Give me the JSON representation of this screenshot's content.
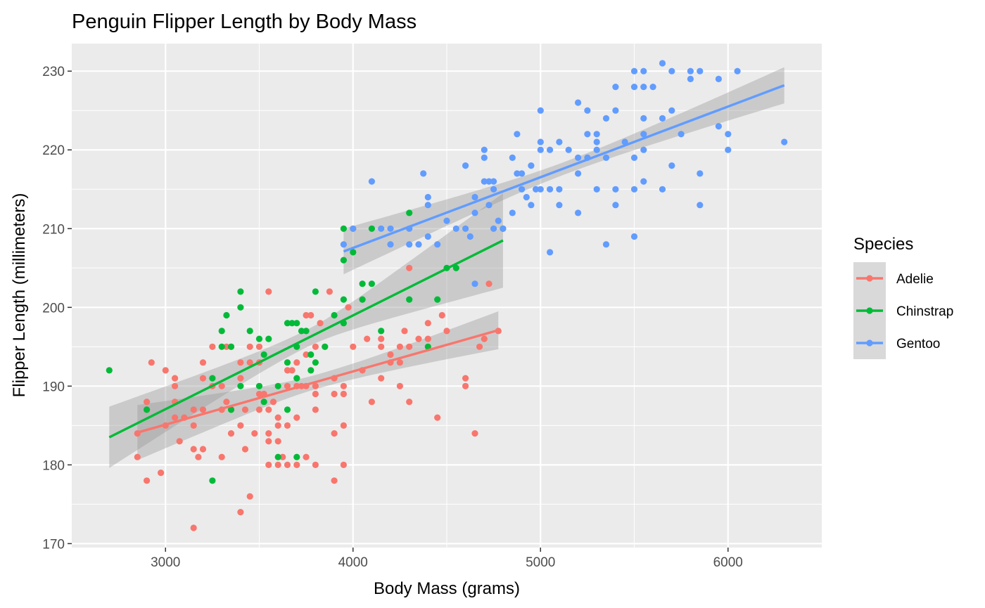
{
  "chart_data": {
    "type": "scatter",
    "title": "Penguin Flipper Length by Body Mass",
    "xlabel": "Body Mass (grams)",
    "ylabel": "Flipper Length (millimeters)",
    "xlim": [
      2500,
      6500
    ],
    "ylim": [
      169.5,
      233.5
    ],
    "x_ticks": [
      3000,
      4000,
      5000,
      6000
    ],
    "y_ticks": [
      170,
      180,
      190,
      200,
      210,
      220,
      230
    ],
    "x_tick_labels": [
      "3000",
      "4000",
      "5000",
      "6000"
    ],
    "y_tick_labels": [
      "170",
      "180",
      "190",
      "200",
      "210",
      "220",
      "230"
    ],
    "grid": true,
    "panel_background": "#ebebeb",
    "legend": {
      "title": "Species",
      "position": "right"
    },
    "series": [
      {
        "name": "Adelie",
        "color": "#f8766d",
        "trend": {
          "x": [
            2850,
            4775
          ],
          "y": [
            184.1,
            197.1
          ],
          "ci_half_width_ends": [
            3.5,
            2.4
          ],
          "ci_half_width_mid": 0.9
        },
        "points": [
          [
            2850,
            184
          ],
          [
            2850,
            181
          ],
          [
            2900,
            188
          ],
          [
            2900,
            187
          ],
          [
            2900,
            178
          ],
          [
            2925,
            193
          ],
          [
            2975,
            179
          ],
          [
            3000,
            192
          ],
          [
            3000,
            185
          ],
          [
            3050,
            191
          ],
          [
            3050,
            190
          ],
          [
            3050,
            188
          ],
          [
            3050,
            186
          ],
          [
            3075,
            183
          ],
          [
            3100,
            186
          ],
          [
            3150,
            187
          ],
          [
            3150,
            185
          ],
          [
            3150,
            182
          ],
          [
            3150,
            172
          ],
          [
            3175,
            181
          ],
          [
            3200,
            193
          ],
          [
            3200,
            191
          ],
          [
            3200,
            182
          ],
          [
            3200,
            187
          ],
          [
            3250,
            195
          ],
          [
            3250,
            190
          ],
          [
            3300,
            190
          ],
          [
            3300,
            187
          ],
          [
            3300,
            181
          ],
          [
            3325,
            188
          ],
          [
            3325,
            195
          ],
          [
            3350,
            187
          ],
          [
            3350,
            184
          ],
          [
            3350,
            195
          ],
          [
            3400,
            191
          ],
          [
            3400,
            185
          ],
          [
            3400,
            193
          ],
          [
            3400,
            174
          ],
          [
            3425,
            182
          ],
          [
            3425,
            187
          ],
          [
            3450,
            193
          ],
          [
            3450,
            195
          ],
          [
            3450,
            176
          ],
          [
            3475,
            184
          ],
          [
            3500,
            193
          ],
          [
            3500,
            189
          ],
          [
            3500,
            187
          ],
          [
            3500,
            195
          ],
          [
            3525,
            189
          ],
          [
            3550,
            202
          ],
          [
            3550,
            187
          ],
          [
            3550,
            184
          ],
          [
            3550,
            180
          ],
          [
            3550,
            183
          ],
          [
            3575,
            188
          ],
          [
            3600,
            186
          ],
          [
            3600,
            185
          ],
          [
            3600,
            180
          ],
          [
            3600,
            183
          ],
          [
            3625,
            181
          ],
          [
            3650,
            192
          ],
          [
            3650,
            190
          ],
          [
            3650,
            185
          ],
          [
            3650,
            180
          ],
          [
            3675,
            192
          ],
          [
            3700,
            193
          ],
          [
            3700,
            190
          ],
          [
            3700,
            186
          ],
          [
            3700,
            180
          ],
          [
            3725,
            190
          ],
          [
            3750,
            199
          ],
          [
            3750,
            194
          ],
          [
            3750,
            190
          ],
          [
            3750,
            181
          ],
          [
            3775,
            199
          ],
          [
            3800,
            195
          ],
          [
            3800,
            190
          ],
          [
            3800,
            189
          ],
          [
            3800,
            187
          ],
          [
            3800,
            180
          ],
          [
            3825,
            198
          ],
          [
            3850,
            195
          ],
          [
            3875,
            202
          ],
          [
            3900,
            191
          ],
          [
            3900,
            189
          ],
          [
            3900,
            184
          ],
          [
            3900,
            178
          ],
          [
            3950,
            190
          ],
          [
            3950,
            189
          ],
          [
            3950,
            185
          ],
          [
            3950,
            180
          ],
          [
            3975,
            200
          ],
          [
            4000,
            195
          ],
          [
            4000,
            210
          ],
          [
            4050,
            192
          ],
          [
            4075,
            196
          ],
          [
            4100,
            188
          ],
          [
            4150,
            196
          ],
          [
            4150,
            195
          ],
          [
            4150,
            191
          ],
          [
            4200,
            194
          ],
          [
            4200,
            193
          ],
          [
            4250,
            195
          ],
          [
            4250,
            193
          ],
          [
            4250,
            190
          ],
          [
            4275,
            197
          ],
          [
            4300,
            195
          ],
          [
            4300,
            188
          ],
          [
            4300,
            205
          ],
          [
            4350,
            196
          ],
          [
            4400,
            198
          ],
          [
            4400,
            196
          ],
          [
            4450,
            186
          ],
          [
            4475,
            199
          ],
          [
            4500,
            197
          ],
          [
            4600,
            191
          ],
          [
            4600,
            190
          ],
          [
            4650,
            184
          ],
          [
            4675,
            195
          ],
          [
            4700,
            196
          ],
          [
            4725,
            203
          ],
          [
            4775,
            197
          ]
        ]
      },
      {
        "name": "Chinstrap",
        "color": "#00ba38",
        "trend": {
          "x": [
            2700,
            4800
          ],
          "y": [
            183.5,
            208.5
          ],
          "ci_half_width_ends": [
            3.9,
            6.0
          ],
          "ci_half_width_mid": 1.1
        },
        "points": [
          [
            2700,
            192
          ],
          [
            2900,
            187
          ],
          [
            3250,
            178
          ],
          [
            3250,
            191
          ],
          [
            3300,
            197
          ],
          [
            3300,
            195
          ],
          [
            3325,
            199
          ],
          [
            3350,
            187
          ],
          [
            3350,
            195
          ],
          [
            3400,
            202
          ],
          [
            3400,
            200
          ],
          [
            3400,
            190
          ],
          [
            3450,
            197
          ],
          [
            3500,
            196
          ],
          [
            3500,
            190
          ],
          [
            3525,
            194
          ],
          [
            3525,
            188
          ],
          [
            3550,
            196
          ],
          [
            3600,
            190
          ],
          [
            3600,
            181
          ],
          [
            3650,
            198
          ],
          [
            3650,
            193
          ],
          [
            3650,
            187
          ],
          [
            3675,
            198
          ],
          [
            3700,
            198
          ],
          [
            3700,
            195
          ],
          [
            3700,
            191
          ],
          [
            3700,
            181
          ],
          [
            3725,
            197
          ],
          [
            3750,
            197
          ],
          [
            3775,
            192
          ],
          [
            3775,
            194
          ],
          [
            3800,
            202
          ],
          [
            3800,
            193
          ],
          [
            3850,
            195
          ],
          [
            3900,
            199
          ],
          [
            3950,
            210
          ],
          [
            3950,
            206
          ],
          [
            3950,
            201
          ],
          [
            3950,
            198
          ],
          [
            4000,
            207
          ],
          [
            4050,
            203
          ],
          [
            4050,
            201
          ],
          [
            4100,
            210
          ],
          [
            4100,
            203
          ],
          [
            4150,
            197
          ],
          [
            4300,
            212
          ],
          [
            4300,
            201
          ],
          [
            4400,
            195
          ],
          [
            4450,
            201
          ],
          [
            4500,
            205
          ],
          [
            4550,
            205
          ],
          [
            4800,
            210
          ]
        ]
      },
      {
        "name": "Gentoo",
        "color": "#619cff",
        "trend": {
          "x": [
            3950,
            6300
          ],
          "y": [
            207.1,
            228.2
          ],
          "ci_half_width_ends": [
            2.9,
            2.3
          ],
          "ci_half_width_mid": 0.8
        },
        "points": [
          [
            3950,
            208
          ],
          [
            4000,
            210
          ],
          [
            4100,
            216
          ],
          [
            4150,
            210
          ],
          [
            4200,
            210
          ],
          [
            4200,
            208
          ],
          [
            4300,
            210
          ],
          [
            4300,
            208
          ],
          [
            4350,
            208
          ],
          [
            4375,
            217
          ],
          [
            4400,
            214
          ],
          [
            4400,
            213
          ],
          [
            4400,
            209
          ],
          [
            4450,
            208
          ],
          [
            4500,
            211
          ],
          [
            4550,
            210
          ],
          [
            4600,
            218
          ],
          [
            4600,
            210
          ],
          [
            4625,
            209
          ],
          [
            4650,
            203
          ],
          [
            4650,
            214
          ],
          [
            4650,
            212
          ],
          [
            4700,
            220
          ],
          [
            4700,
            219
          ],
          [
            4700,
            216
          ],
          [
            4725,
            216
          ],
          [
            4725,
            213
          ],
          [
            4750,
            216
          ],
          [
            4750,
            215
          ],
          [
            4750,
            210
          ],
          [
            4775,
            211
          ],
          [
            4800,
            210
          ],
          [
            4850,
            219
          ],
          [
            4850,
            212
          ],
          [
            4875,
            222
          ],
          [
            4875,
            217
          ],
          [
            4900,
            217
          ],
          [
            4900,
            215
          ],
          [
            4925,
            214
          ],
          [
            4950,
            218
          ],
          [
            4950,
            213
          ],
          [
            4975,
            215
          ],
          [
            5000,
            225
          ],
          [
            5000,
            221
          ],
          [
            5000,
            220
          ],
          [
            5000,
            215
          ],
          [
            5050,
            220
          ],
          [
            5050,
            215
          ],
          [
            5050,
            207
          ],
          [
            5100,
            221
          ],
          [
            5100,
            215
          ],
          [
            5100,
            213
          ],
          [
            5150,
            220
          ],
          [
            5200,
            226
          ],
          [
            5200,
            219
          ],
          [
            5200,
            217
          ],
          [
            5200,
            212
          ],
          [
            5250,
            225
          ],
          [
            5250,
            222
          ],
          [
            5250,
            219
          ],
          [
            5300,
            222
          ],
          [
            5300,
            221
          ],
          [
            5300,
            220
          ],
          [
            5300,
            215
          ],
          [
            5350,
            224
          ],
          [
            5350,
            219
          ],
          [
            5350,
            208
          ],
          [
            5400,
            228
          ],
          [
            5400,
            225
          ],
          [
            5400,
            215
          ],
          [
            5400,
            213
          ],
          [
            5450,
            221
          ],
          [
            5500,
            230
          ],
          [
            5500,
            228
          ],
          [
            5500,
            219
          ],
          [
            5500,
            215
          ],
          [
            5500,
            209
          ],
          [
            5550,
            230
          ],
          [
            5550,
            228
          ],
          [
            5550,
            224
          ],
          [
            5550,
            222
          ],
          [
            5550,
            220
          ],
          [
            5550,
            216
          ],
          [
            5600,
            228
          ],
          [
            5650,
            231
          ],
          [
            5650,
            224
          ],
          [
            5650,
            215
          ],
          [
            5700,
            230
          ],
          [
            5700,
            225
          ],
          [
            5700,
            218
          ],
          [
            5750,
            222
          ],
          [
            5800,
            230
          ],
          [
            5800,
            229
          ],
          [
            5850,
            230
          ],
          [
            5850,
            217
          ],
          [
            5850,
            213
          ],
          [
            5950,
            229
          ],
          [
            5950,
            223
          ],
          [
            6000,
            222
          ],
          [
            6000,
            220
          ],
          [
            6050,
            230
          ],
          [
            6300,
            221
          ]
        ]
      }
    ]
  }
}
